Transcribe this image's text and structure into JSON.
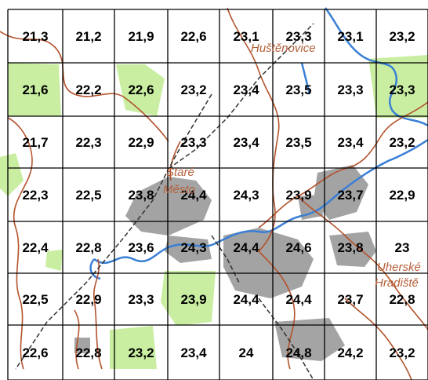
{
  "map": {
    "rows": 7,
    "cols": 8,
    "values": [
      [
        "21,3",
        "21,2",
        "21,9",
        "22,6",
        "23,1",
        "23,3",
        "23,1",
        "23,2"
      ],
      [
        "21,6",
        "22,2",
        "22,6",
        "23,2",
        "23,4",
        "23,5",
        "23,3",
        "23,3"
      ],
      [
        "21,7",
        "22,3",
        "22,9",
        "23,3",
        "23,4",
        "23,5",
        "23,4",
        "23,2"
      ],
      [
        "22,3",
        "22,5",
        "23,8",
        "24,4",
        "24,3",
        "23,9",
        "23,7",
        "22,9"
      ],
      [
        "22,4",
        "22,8",
        "23,6",
        "24,3",
        "24,4",
        "24,6",
        "23,8",
        "23"
      ],
      [
        "22,5",
        "22,9",
        "23,3",
        "23,9",
        "24,4",
        "24,4",
        "23,7",
        "22,8"
      ],
      [
        "22,6",
        "22,8",
        "23,2",
        "23,4",
        "24",
        "24,8",
        "24,2",
        "23,2"
      ]
    ],
    "places": {
      "hustenovice": "Huštěnovice",
      "stare": "Staré",
      "mesto": "Město",
      "uherske": "Uherské",
      "hradiste": "Hradiště"
    },
    "colors": {
      "grid": "#000000",
      "river": "#3a7fd5",
      "forest": "#c9eea1",
      "builtup": "#9a9a9a",
      "road": "#b3532c",
      "railway": "#333333",
      "label": "#000000",
      "place": "#b5603a"
    }
  }
}
